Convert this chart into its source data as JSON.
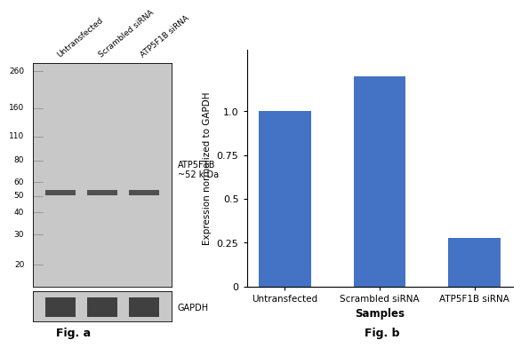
{
  "fig_a": {
    "ladder_labels": [
      "260",
      "160",
      "110",
      "80",
      "60",
      "50",
      "40",
      "30",
      "20"
    ],
    "ladder_positions": [
      260,
      160,
      110,
      80,
      60,
      50,
      40,
      30,
      20
    ],
    "band_label": "ATP5F1B\n~52 k Da",
    "gapdh_label": "GAPDH",
    "fig_label": "Fig. a",
    "lane_labels": [
      "Untransfected",
      "Scrambled siRNA",
      "ATP5F1B siRNA"
    ],
    "gel_color": "#c8c8c8",
    "band_color": "#505050",
    "gapdh_band_color": "#404040"
  },
  "fig_b": {
    "categories": [
      "Untransfected",
      "Scrambled siRNA",
      "ATP5F1B siRNA"
    ],
    "values": [
      1.0,
      1.2,
      0.28
    ],
    "bar_color": "#4472c4",
    "ylabel": "Expression normalized to GAPDH",
    "xlabel": "Samples",
    "yticks": [
      0,
      0.25,
      0.5,
      0.75,
      1.0
    ],
    "ylim": [
      0,
      1.35
    ],
    "fig_label": "Fig. b"
  },
  "background_color": "#ffffff"
}
